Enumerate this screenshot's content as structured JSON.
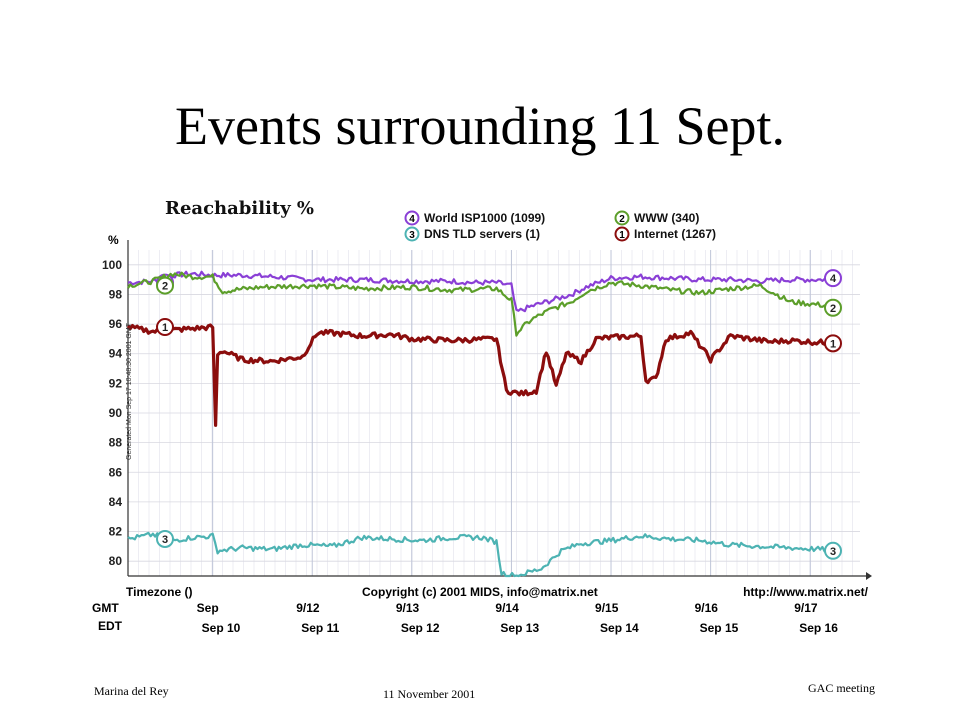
{
  "slide": {
    "title": "Events surrounding 11 Sept.",
    "footer_left": "Marina del Rey",
    "footer_center": "11 November 2001",
    "footer_right": "GAC  meeting"
  },
  "chart_data": {
    "type": "line",
    "title": "Reachability %",
    "ylabel": "%",
    "ylim": [
      79,
      101
    ],
    "yticks": [
      80,
      82,
      84,
      86,
      88,
      90,
      92,
      94,
      96,
      98,
      100
    ],
    "side_label": "Generated Mon Sep 17 10:48:30 2001 GMT",
    "x_timezone_label": "Timezone ()",
    "copyright": "Copyright (c) 2001 MIDS, info@matrix.net",
    "url": "http://www.matrix.net/",
    "x_labels_gmt_prefix": "GMT",
    "x_labels_gmt": [
      "Sep",
      "9/12",
      "9/13",
      "9/14",
      "9/15",
      "9/16",
      "9/17"
    ],
    "x_labels_edt_prefix": "EDT",
    "x_labels_edt": [
      "Sep 10",
      "Sep 11",
      "Sep 12",
      "Sep 13",
      "Sep 14",
      "Sep 15",
      "Sep 16"
    ],
    "x_day_positions": [
      0,
      1,
      2,
      3,
      4,
      5,
      6
    ],
    "xlim": [
      -0.85,
      6.5
    ],
    "legend": [
      {
        "num": "4",
        "label": "World ISP1000 (1099)",
        "color": "#8a3fd6"
      },
      {
        "num": "2",
        "label": "WWW (340)",
        "color": "#5c9e2a"
      },
      {
        "num": "3",
        "label": "DNS TLD servers (1)",
        "color": "#4db3b3"
      },
      {
        "num": "1",
        "label": "Internet (1267)",
        "color": "#8b0d0d"
      }
    ],
    "series": [
      {
        "name": "World ISP1000 (1099)",
        "num": "4",
        "color": "#8a3fd6",
        "x": [
          -0.85,
          -0.6,
          -0.4,
          -0.2,
          0.0,
          0.3,
          0.6,
          1.0,
          1.5,
          2.0,
          2.4,
          2.6,
          2.85,
          3.0,
          3.05,
          3.2,
          3.4,
          3.6,
          3.75,
          4.0,
          4.3,
          4.6,
          4.9,
          5.2,
          5.5,
          5.8,
          6.1,
          6.3
        ],
        "values": [
          98.8,
          98.9,
          99.3,
          99.4,
          99.3,
          99.3,
          99.2,
          99.0,
          99.0,
          98.9,
          98.9,
          98.8,
          98.8,
          98.6,
          96.8,
          97.2,
          97.6,
          98.0,
          98.5,
          99.1,
          99.2,
          99.1,
          99.0,
          99.0,
          98.9,
          99.0,
          99.0,
          99.1
        ]
      },
      {
        "name": "WWW (340)",
        "num": "2",
        "color": "#5c9e2a",
        "x": [
          -0.85,
          -0.6,
          -0.4,
          -0.2,
          0.0,
          0.1,
          0.2,
          0.5,
          1.0,
          1.5,
          2.0,
          2.4,
          2.85,
          3.0,
          3.05,
          3.2,
          3.4,
          3.6,
          3.75,
          4.0,
          4.3,
          4.6,
          4.9,
          5.2,
          5.5,
          5.8,
          6.1,
          6.3
        ],
        "values": [
          98.6,
          98.9,
          99.4,
          99.2,
          99.2,
          98.2,
          98.3,
          98.5,
          98.6,
          98.4,
          98.5,
          98.3,
          98.4,
          97.6,
          95.4,
          96.3,
          97.0,
          97.5,
          98.2,
          98.8,
          98.6,
          98.3,
          98.1,
          98.4,
          98.6,
          97.5,
          97.3,
          97.1
        ]
      },
      {
        "name": "Internet (1267)",
        "num": "1",
        "color": "#8b0d0d",
        "x": [
          -0.85,
          -0.6,
          -0.4,
          -0.2,
          0.0,
          0.03,
          0.05,
          0.1,
          0.3,
          0.6,
          0.9,
          1.05,
          1.2,
          1.5,
          1.8,
          2.0,
          2.4,
          2.85,
          2.95,
          3.1,
          3.25,
          3.35,
          3.45,
          3.55,
          3.7,
          3.85,
          4.0,
          4.3,
          4.35,
          4.45,
          4.55,
          4.8,
          5.0,
          5.2,
          5.4,
          5.6,
          5.8,
          6.0,
          6.3
        ],
        "values": [
          95.8,
          95.5,
          95.6,
          95.7,
          95.8,
          89.2,
          94.0,
          94.2,
          93.6,
          93.5,
          93.8,
          95.4,
          95.4,
          95.2,
          95.3,
          95.0,
          94.9,
          95.0,
          91.5,
          91.3,
          91.5,
          94.2,
          91.8,
          94.0,
          93.5,
          95.0,
          95.1,
          95.2,
          92.2,
          92.3,
          95.0,
          95.4,
          93.6,
          95.2,
          95.0,
          94.8,
          94.9,
          94.8,
          94.7
        ]
      },
      {
        "name": "DNS TLD servers (1)",
        "num": "3",
        "color": "#4db3b3",
        "x": [
          -0.85,
          -0.6,
          -0.4,
          -0.2,
          0.0,
          0.05,
          0.3,
          0.6,
          0.9,
          1.2,
          1.5,
          1.8,
          2.1,
          2.4,
          2.7,
          2.85,
          2.9,
          3.05,
          3.3,
          3.5,
          3.7,
          4.0,
          4.3,
          4.6,
          4.9,
          5.2,
          5.5,
          5.8,
          6.1,
          6.3
        ],
        "values": [
          81.5,
          81.8,
          81.4,
          81.6,
          81.7,
          80.7,
          80.9,
          80.8,
          81.1,
          81.0,
          81.6,
          81.5,
          81.4,
          81.6,
          81.6,
          81.3,
          79.2,
          79.0,
          79.5,
          80.7,
          81.2,
          81.4,
          81.7,
          81.5,
          81.4,
          81.1,
          81.0,
          80.9,
          80.8,
          80.7
        ]
      }
    ]
  }
}
